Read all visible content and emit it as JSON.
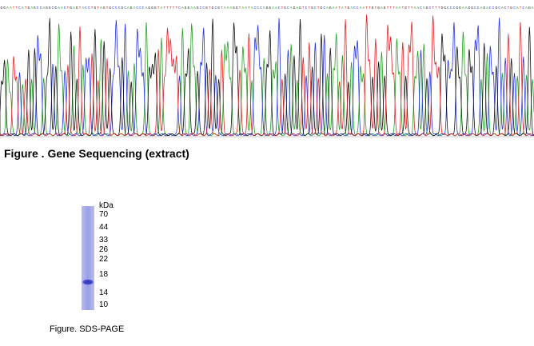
{
  "sequence_figure": {
    "bases": "GGAATTCATGAGCCAGGCGAACTGAGTACCTGTAGTGCCCGCAGACCCAGGGTATTTTTCAGGAAGCCGTGCGTAAAGGTAATACCCAGGAACTGCAGAGTCTGCTGCAGAATATGACCAATTGTGAGTTTAATGTTAACAGCTTTGGCCCGGAAGGCCAGACCGCACTGCATCAGA",
    "caption": "Figure . Gene Sequencing (extract)",
    "colors": {
      "A": "#22a022",
      "C": "#2233dd",
      "G": "#111111",
      "T": "#dd2222"
    }
  },
  "sds_page": {
    "unit": "kDa",
    "markers": [
      "70",
      "44",
      "33",
      "26",
      "22",
      "18",
      "14",
      "10"
    ],
    "band_kda": 16,
    "caption": "Figure. SDS-PAGE",
    "lane_color": "#8a8ee0",
    "band_color": "#3a3fc0"
  }
}
